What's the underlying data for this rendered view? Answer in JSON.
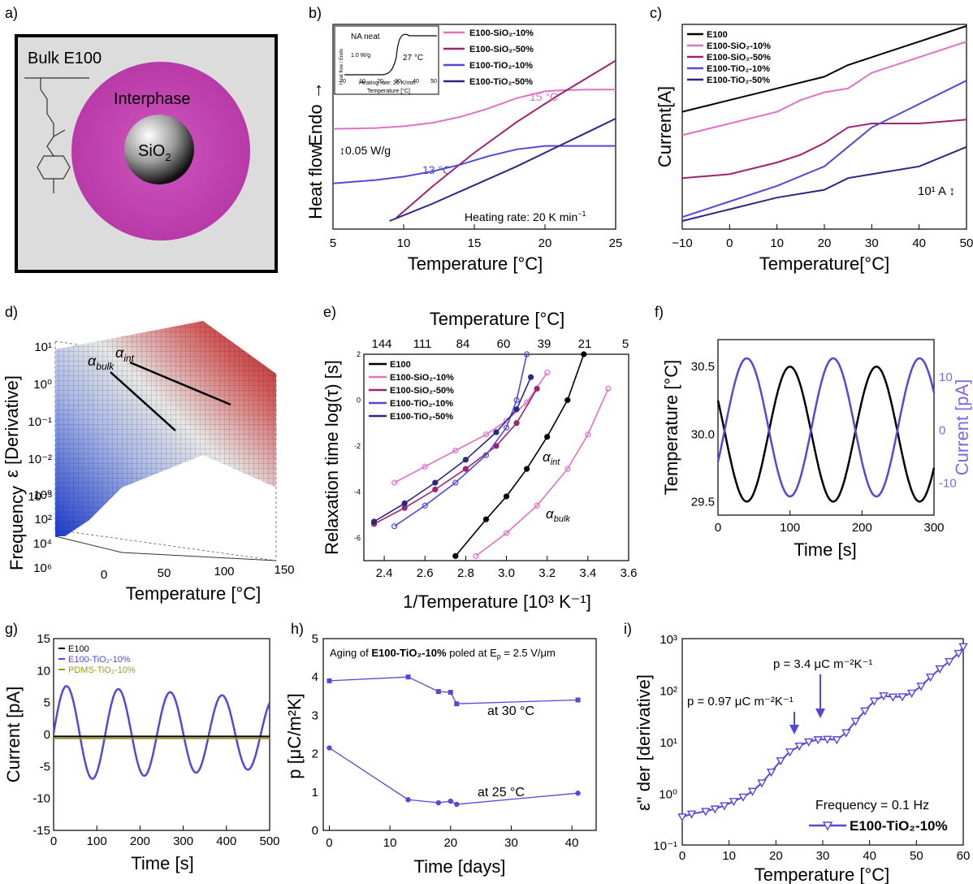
{
  "panel_labels": {
    "a": "a)",
    "b": "b)",
    "c": "c)",
    "d": "d)",
    "e": "e)",
    "f": "f)",
    "g": "g)",
    "h": "h)",
    "i": "i)"
  },
  "panel_a": {
    "bulk_label": "Bulk E100",
    "interphase_label": "Interphase",
    "core_label": "SiO",
    "core_sub": "2",
    "colors": {
      "interphase": "#c040b0",
      "bulk": "#dcdcdc"
    }
  },
  "chart_data": [
    {
      "id": "b",
      "type": "line",
      "xlabel": "Temperature [°C]",
      "ylabel_top": "Endo →",
      "ylabel_bottom": "Heat flow",
      "xlim": [
        5,
        25
      ],
      "xticks": [
        "5",
        "10",
        "15",
        "20",
        "25"
      ],
      "scale_bar": "0.05 W/g",
      "note": "Heating rate: 20 K min",
      "annotations": [
        "15 °C",
        "13 °C"
      ],
      "legend": [
        "E100-SiO₂-10%",
        "E100-SiO₂-50%",
        "E100-TiO₂-10%",
        "E100-TiO₂-50%"
      ],
      "series": [
        {
          "name": "E100-SiO₂-10%",
          "color": "#e070c8",
          "x": [
            5,
            8,
            10,
            12,
            14,
            16,
            18,
            20,
            21,
            23,
            25
          ],
          "y": [
            0.54,
            0.545,
            0.555,
            0.575,
            0.61,
            0.66,
            0.72,
            0.76,
            0.765,
            0.77,
            0.77
          ]
        },
        {
          "name": "E100-SiO₂-50%",
          "color": "#9c2470",
          "x": [
            9.5,
            12,
            15,
            18,
            21,
            23,
            25
          ],
          "y": [
            0.02,
            0.2,
            0.4,
            0.58,
            0.74,
            0.84,
            0.94
          ]
        },
        {
          "name": "E100-TiO₂-10%",
          "color": "#5448d8",
          "x": [
            5,
            8,
            10,
            12,
            14,
            16,
            18,
            20,
            22,
            24,
            25
          ],
          "y": [
            0.22,
            0.24,
            0.26,
            0.29,
            0.33,
            0.38,
            0.42,
            0.44,
            0.44,
            0.44,
            0.44
          ]
        },
        {
          "name": "E100-TiO₂-50%",
          "color": "#2a2880",
          "x": [
            9,
            12,
            15,
            18,
            21,
            23,
            25
          ],
          "y": [
            0.0,
            0.1,
            0.21,
            0.32,
            0.44,
            0.52,
            0.6
          ]
        }
      ],
      "inset": {
        "title": "NA neat",
        "annotation": "27 °C",
        "scale": "1.0 W/g",
        "xlabel": "Temperature [°C]",
        "ylabel": "Heat flow / Endo",
        "note": "Heating rate: 20 K/min",
        "xticks": [
          "0",
          "10",
          "20",
          "30",
          "40",
          "50"
        ]
      }
    },
    {
      "id": "c",
      "type": "line",
      "xlabel": "Temperature[°C]",
      "ylabel": "Current[A]",
      "xlim": [
        -10,
        50
      ],
      "xticks": [
        "−10",
        "0",
        "10",
        "20",
        "30",
        "40",
        "50"
      ],
      "scale_bar": "10¹ A",
      "legend": [
        "E100",
        "E100-SiO₂-10%",
        "E100-SiO₂-50%",
        "E100-TiO₂-10%",
        "E100-TiO₂-50%"
      ],
      "series": [
        {
          "name": "E100",
          "color": "#000000",
          "x": [
            -10,
            0,
            10,
            20,
            25,
            30,
            40,
            50
          ],
          "y": [
            0.56,
            0.62,
            0.68,
            0.74,
            0.8,
            0.84,
            0.92,
            1.0
          ]
        },
        {
          "name": "E100-SiO₂-10%",
          "color": "#e070c8",
          "x": [
            -10,
            0,
            10,
            15,
            20,
            25,
            30,
            40,
            50
          ],
          "y": [
            0.44,
            0.5,
            0.56,
            0.62,
            0.66,
            0.68,
            0.76,
            0.84,
            0.92
          ]
        },
        {
          "name": "E100-SiO₂-50%",
          "color": "#9c2470",
          "x": [
            -10,
            0,
            10,
            15,
            20,
            25,
            30,
            40,
            50
          ],
          "y": [
            0.22,
            0.24,
            0.3,
            0.34,
            0.4,
            0.48,
            0.5,
            0.5,
            0.52
          ]
        },
        {
          "name": "E100-TiO₂-10%",
          "color": "#5448d8",
          "x": [
            -10,
            0,
            10,
            20,
            25,
            30,
            40,
            50
          ],
          "y": [
            0.02,
            0.1,
            0.18,
            0.28,
            0.38,
            0.48,
            0.6,
            0.72
          ]
        },
        {
          "name": "E100-TiO₂-50%",
          "color": "#2a2880",
          "x": [
            -10,
            0,
            10,
            20,
            25,
            30,
            40,
            50
          ],
          "y": [
            0.0,
            0.06,
            0.12,
            0.16,
            0.22,
            0.24,
            0.28,
            0.38
          ]
        }
      ]
    },
    {
      "id": "d",
      "type": "surface",
      "xlabel": "Temperature [°C]",
      "ylabel": "ε [Derivative]",
      "zlabel": "Frequency",
      "xticks": [
        "0",
        "50",
        "100",
        "150"
      ],
      "zticks": [
        "10¹",
        "10⁰",
        "10⁻¹",
        "10⁻²",
        "10⁻³"
      ],
      "freq_ticks": [
        "10⁰",
        "10²",
        "10⁴",
        "10⁶"
      ],
      "annotations": [
        "α",
        "bulk",
        "α",
        "int"
      ]
    },
    {
      "id": "e",
      "type": "scatter",
      "xlabel": "1/Temperature [10³ K⁻¹]",
      "x2label": "Temperature [°C]",
      "ylabel": "Relaxation time log(τ) [s]",
      "xlim": [
        2.3,
        3.6
      ],
      "ylim": [
        -7,
        2
      ],
      "xticks": [
        "2.4",
        "2.6",
        "2.8",
        "3.0",
        "3.2",
        "3.4",
        "3.6"
      ],
      "x2ticks": [
        "144",
        "111",
        "84",
        "60",
        "39",
        "21",
        "5"
      ],
      "yticks": [
        "2",
        "0",
        "-2",
        "-4",
        "-6"
      ],
      "annotations": [
        "α",
        "int",
        "α",
        "bulk"
      ],
      "legend": [
        "E100",
        "E100-SiO₂-10%",
        "E100-SiO₂-50%",
        "E100-TiO₂-10%",
        "E100-TiO₂-50%"
      ],
      "series": [
        {
          "name": "E100",
          "color": "#000000",
          "x": [
            2.75,
            2.9,
            3.0,
            3.1,
            3.2,
            3.3,
            3.38
          ],
          "y": [
            -6.8,
            -5.2,
            -4.2,
            -3.0,
            -1.6,
            0.0,
            2.0
          ]
        },
        {
          "name": "E100-SiO₂-10%",
          "color": "#e070c8",
          "x": [
            2.45,
            2.6,
            2.75,
            2.9,
            3.0,
            3.1,
            3.2
          ],
          "y": [
            -3.6,
            -2.9,
            -2.2,
            -1.5,
            -0.9,
            -0.1,
            1.2
          ]
        },
        {
          "name": "E100-SiO₂-50%",
          "color": "#9c2470",
          "x": [
            2.35,
            2.5,
            2.65,
            2.8,
            2.95,
            3.05,
            3.15
          ],
          "y": [
            -5.4,
            -4.7,
            -3.9,
            -3.0,
            -2.0,
            -1.0,
            0.5
          ]
        },
        {
          "name": "E100-TiO₂-10%",
          "color": "#5448d8",
          "x": [
            2.45,
            2.6,
            2.75,
            2.9,
            3.0,
            3.05,
            3.1
          ],
          "y": [
            -5.5,
            -4.6,
            -3.6,
            -2.4,
            -1.2,
            0.0,
            2.0
          ]
        },
        {
          "name": "E100-TiO₂-50%",
          "color": "#2a2880",
          "x": [
            2.35,
            2.5,
            2.65,
            2.8,
            2.95,
            3.05,
            3.12
          ],
          "y": [
            -5.3,
            -4.5,
            -3.6,
            -2.6,
            -1.4,
            -0.4,
            1.0
          ]
        },
        {
          "name": "E100-SiO₂-10% bulk",
          "color": "#e070c8",
          "x": [
            2.85,
            3.0,
            3.15,
            3.3,
            3.4,
            3.5
          ],
          "y": [
            -6.8,
            -5.8,
            -4.6,
            -3.0,
            -1.5,
            0.5
          ]
        }
      ]
    },
    {
      "id": "f",
      "type": "line",
      "xlabel": "Time [s]",
      "ylabel": "Temperature [°C]",
      "y2label": "Current [pA]",
      "xlim": [
        0,
        300
      ],
      "ylim": [
        29.4,
        30.7
      ],
      "y2lim": [
        -16,
        17
      ],
      "xticks": [
        "0",
        "100",
        "200",
        "300"
      ],
      "yticks": [
        "29.5",
        "30.0",
        "30.5"
      ],
      "y2ticks": [
        "10",
        "0",
        "-10"
      ],
      "series": [
        {
          "name": "Temperature",
          "color": "#000000",
          "amplitude": 0.5,
          "offset": 30.0,
          "period": 120,
          "phase_time": 100
        },
        {
          "name": "Current",
          "color": "#5448d8",
          "amplitude": 13,
          "offset": 0.5,
          "period": 120,
          "phase_time": 40
        }
      ]
    },
    {
      "id": "g",
      "type": "line",
      "xlabel": "Time [s]",
      "ylabel": "Current [pA]",
      "xlim": [
        0,
        500
      ],
      "ylim": [
        -15,
        15
      ],
      "xticks": [
        "0",
        "100",
        "200",
        "300",
        "400",
        "500"
      ],
      "yticks": [
        "15",
        "10",
        "5",
        "0",
        "-5",
        "-10",
        "-15"
      ],
      "legend": [
        "E100",
        "E100-TiO₂-10%",
        "PDMS-TiO₂-10%"
      ],
      "series": [
        {
          "name": "E100",
          "color": "#000000",
          "constant": -0.3
        },
        {
          "name": "E100-TiO₂-10%",
          "color": "#5448d8",
          "amplitude_start": 7.5,
          "amplitude_end": 5.5,
          "period": 120,
          "phase_time": 30,
          "offset": 0.2
        },
        {
          "name": "PDMS-TiO₂-10%",
          "color": "#9a9a20",
          "constant": -0.6
        }
      ]
    },
    {
      "id": "h",
      "type": "line",
      "xlabel": "Time [days]",
      "ylabel": "p [μC/m²K]",
      "title_pre": "Aging of ",
      "title_bold": "E100-TiO₂-10%",
      "title_post": " poled at E",
      "title_sub": "p",
      "title_end": " = 2.5 V/μm",
      "xlim": [
        -1,
        44
      ],
      "ylim": [
        0,
        5
      ],
      "xticks": [
        "0",
        "10",
        "20",
        "30",
        "40"
      ],
      "yticks": [
        "0",
        "1",
        "2",
        "3",
        "4",
        "5"
      ],
      "annotations": [
        "at 30 °C",
        "at 25 °C"
      ],
      "series": [
        {
          "name": "at 30 °C",
          "color": "#5448d8",
          "x": [
            0,
            13,
            18,
            20,
            21,
            41
          ],
          "y": [
            3.9,
            4.0,
            3.62,
            3.6,
            3.3,
            3.4
          ]
        },
        {
          "name": "at 25 °C",
          "color": "#5448d8",
          "x": [
            0,
            13,
            18,
            20,
            21,
            41
          ],
          "y": [
            2.15,
            0.8,
            0.72,
            0.76,
            0.68,
            0.97
          ]
        }
      ]
    },
    {
      "id": "i",
      "type": "line",
      "xlabel": "Temperature [°C]",
      "ylabel": "ε\" der [derivative]",
      "xlim": [
        0,
        60
      ],
      "ylim": [
        -1,
        3
      ],
      "yscale": "log",
      "xticks": [
        "0",
        "10",
        "20",
        "30",
        "40",
        "50",
        "60"
      ],
      "yticks": [
        "10³",
        "10²",
        "10¹",
        "10⁰",
        "10⁻¹"
      ],
      "annotations": [
        "p = 3.4 μC m⁻²K⁻¹",
        "p = 0.97 μC m⁻²K⁻¹",
        "Frequency = 0.1 Hz"
      ],
      "legend": [
        "E100-TiO₂-10%"
      ],
      "series": [
        {
          "name": "E100-TiO₂-10%",
          "color": "#5448d8",
          "x": [
            0,
            2,
            5,
            7,
            9,
            11,
            13,
            15,
            17,
            19,
            21,
            23,
            25,
            27,
            29,
            31,
            33,
            35,
            37,
            39,
            41,
            43,
            45,
            47,
            49,
            51,
            53,
            55,
            57,
            59,
            60
          ],
          "y": [
            0.35,
            0.4,
            0.45,
            0.5,
            0.58,
            0.7,
            0.85,
            1.1,
            1.6,
            2.6,
            4.3,
            6.4,
            8.3,
            10.0,
            11.0,
            11.2,
            11.0,
            15,
            25,
            40,
            62,
            78,
            74,
            75,
            88,
            120,
            180,
            260,
            360,
            520,
            700
          ]
        }
      ]
    }
  ]
}
